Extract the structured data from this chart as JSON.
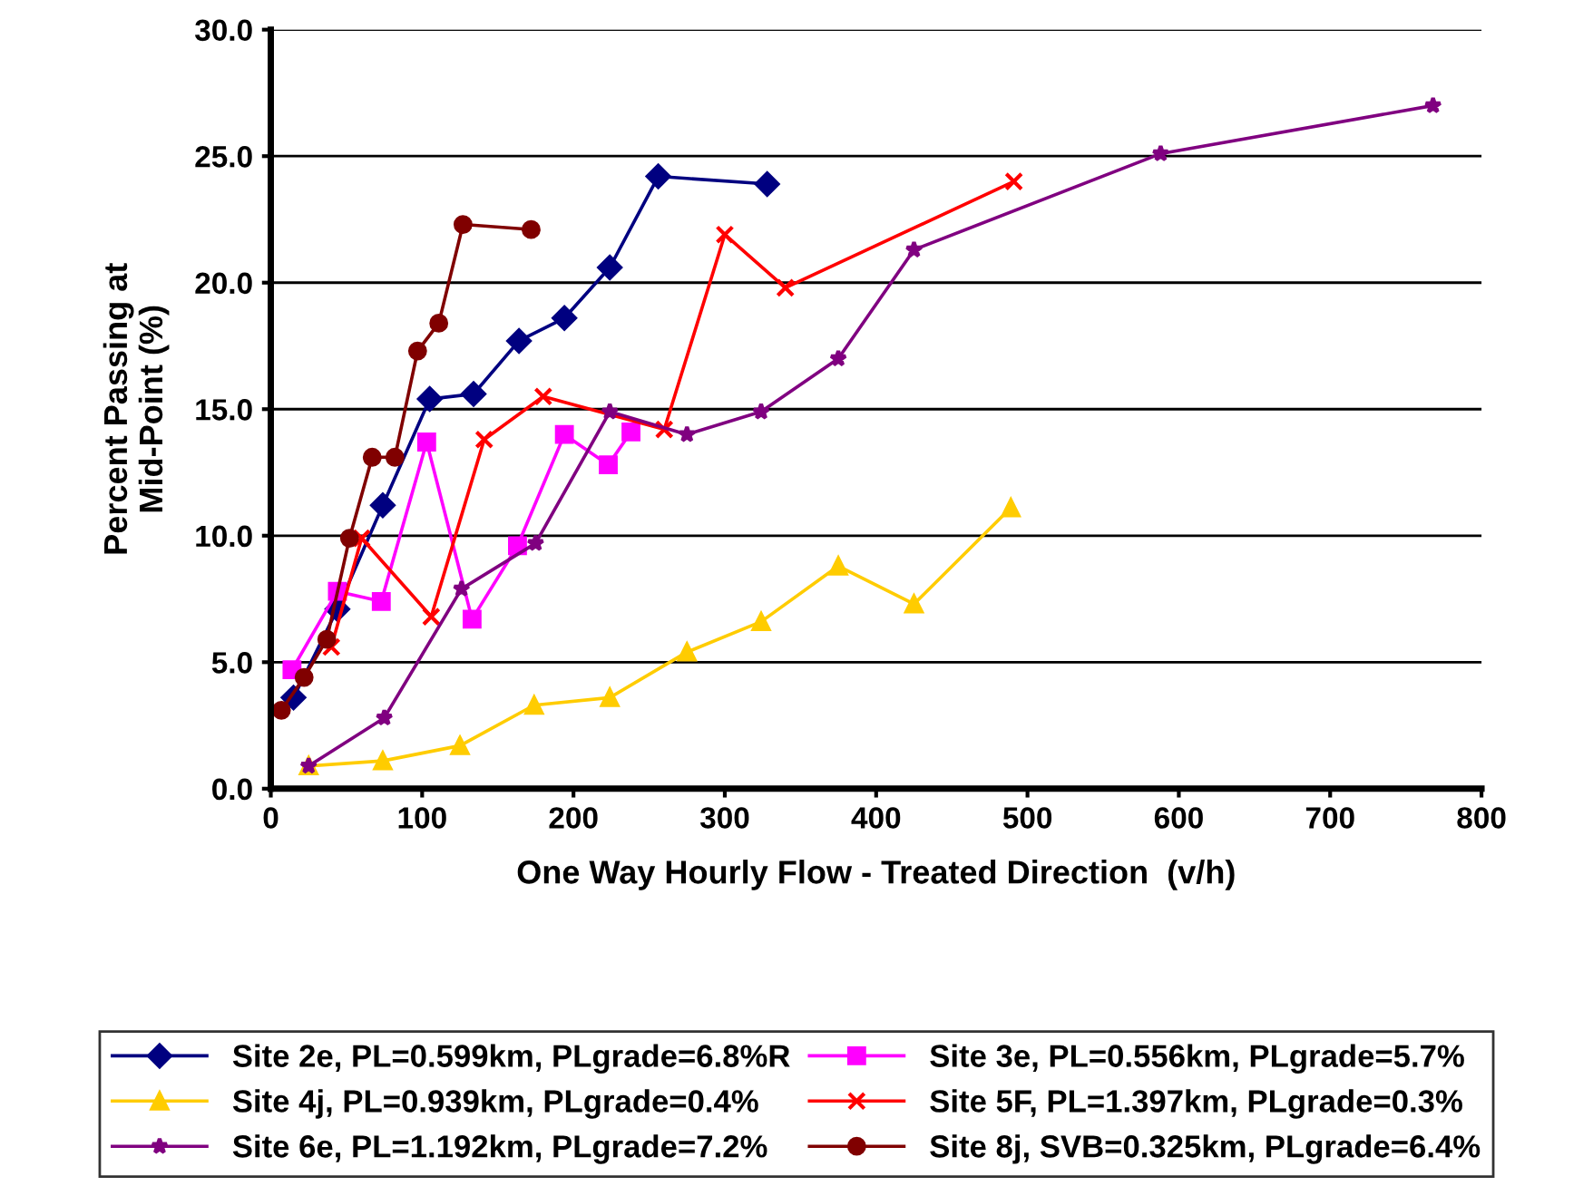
{
  "chart_data": {
    "type": "line",
    "xlabel": "One Way Hourly Flow - Treated Direction  (v/h)",
    "ylabel": "Percent Passing at\nMid-Point (%)",
    "xlim": [
      0,
      800
    ],
    "xticks": [
      0,
      100,
      200,
      300,
      400,
      500,
      600,
      700,
      800
    ],
    "ylim": [
      0,
      30
    ],
    "yticks": [
      {
        "value": 0,
        "label": "0.0"
      },
      {
        "value": 5,
        "label": "5.0"
      },
      {
        "value": 10,
        "label": "10.0"
      },
      {
        "value": 15,
        "label": "15.0"
      },
      {
        "value": 20,
        "label": "20.0"
      },
      {
        "value": 25,
        "label": "25.0"
      },
      {
        "value": 30,
        "label": "30.0"
      }
    ],
    "grid": "y",
    "legend": "bottom",
    "series": [
      {
        "name": "Site 2e, PL=0.599km, PLgrade=6.8%R",
        "color": "#000080",
        "marker": "diamond",
        "x": [
          15,
          44,
          74,
          105,
          134,
          164,
          194,
          224,
          256,
          328
        ],
        "values": [
          3.6,
          7.1,
          11.2,
          15.4,
          15.6,
          17.7,
          18.6,
          20.6,
          24.2,
          23.9
        ]
      },
      {
        "name": "Site 3e, PL=0.556km, PLgrade=5.7%",
        "color": "#ff00ff",
        "marker": "square",
        "x": [
          14,
          44,
          73,
          103,
          133,
          163,
          194,
          223,
          238
        ],
        "values": [
          4.7,
          7.8,
          7.4,
          13.7,
          6.7,
          9.6,
          14.0,
          12.8,
          14.1
        ]
      },
      {
        "name": "Site 4j, PL=0.939km, PLgrade=0.4%",
        "color": "#ffcc00",
        "marker": "triangle",
        "x": [
          25,
          74,
          125,
          174,
          224,
          275,
          324,
          375,
          425,
          489
        ],
        "values": [
          0.9,
          1.1,
          1.7,
          3.3,
          3.6,
          5.4,
          6.6,
          8.8,
          7.3,
          11.1
        ]
      },
      {
        "name": "Site 5F, PL=1.397km, PLgrade=0.3%",
        "color": "#ff0000",
        "marker": "cross",
        "x": [
          40,
          60,
          106,
          141,
          180,
          260,
          300,
          340,
          491
        ],
        "values": [
          5.6,
          9.9,
          6.8,
          13.8,
          15.5,
          14.2,
          21.9,
          19.8,
          24.0
        ]
      },
      {
        "name": "Site 6e, PL=1.192km, PLgrade=7.2%",
        "color": "#800080",
        "marker": "star",
        "x": [
          25,
          75,
          126,
          175,
          224,
          275,
          324,
          375,
          425,
          588,
          768
        ],
        "values": [
          0.9,
          2.8,
          7.9,
          9.7,
          14.9,
          14.0,
          14.9,
          17.0,
          21.3,
          25.1,
          27.0
        ]
      },
      {
        "name": "Site 8j, SVB=0.325km, PLgrade=6.4%",
        "color": "#800000",
        "marker": "circle",
        "x": [
          7,
          22,
          37,
          52,
          67,
          82,
          97,
          111,
          127,
          172
        ],
        "values": [
          3.1,
          4.4,
          5.9,
          9.9,
          13.1,
          13.1,
          17.3,
          18.4,
          22.3,
          22.1
        ]
      }
    ]
  }
}
